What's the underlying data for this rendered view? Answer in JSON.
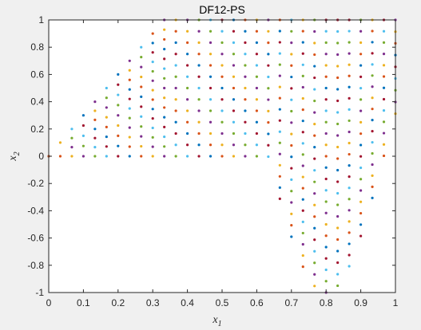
{
  "chart_data": {
    "type": "scatter",
    "title": "DF12-PS",
    "xlabel": "x",
    "xlabel_subscript": "1",
    "ylabel": "x",
    "ylabel_subscript": "2",
    "xlim": [
      0,
      1
    ],
    "ylim": [
      -1,
      1
    ],
    "xticks": [
      "0",
      "0.1",
      "0.2",
      "0.3",
      "0.4",
      "0.5",
      "0.6",
      "0.7",
      "0.8",
      "0.9",
      "1"
    ],
    "yticks": [
      "-1",
      "-0.8",
      "-0.6",
      "-0.4",
      "-0.2",
      "0",
      "0.2",
      "0.4",
      "0.6",
      "0.8",
      "1"
    ],
    "grid": false,
    "legend": "none",
    "colors": [
      "#0072BD",
      "#D95319",
      "#EDB120",
      "#7E2F8E",
      "#77AC30",
      "#4DBEEE",
      "#A2142F"
    ],
    "series_description": "Pareto-set samples of DF12 at many time steps: points in columns at x1 = k/30 (k = 0..30); for x1 <= 0.333 points span 0 to 3*x1, for 0.333 < x1 <= 0.633 points span 0 to 1, for x1 > 0.633 points span -sin(3*pi*(x1-0.633)) to 1"
  }
}
